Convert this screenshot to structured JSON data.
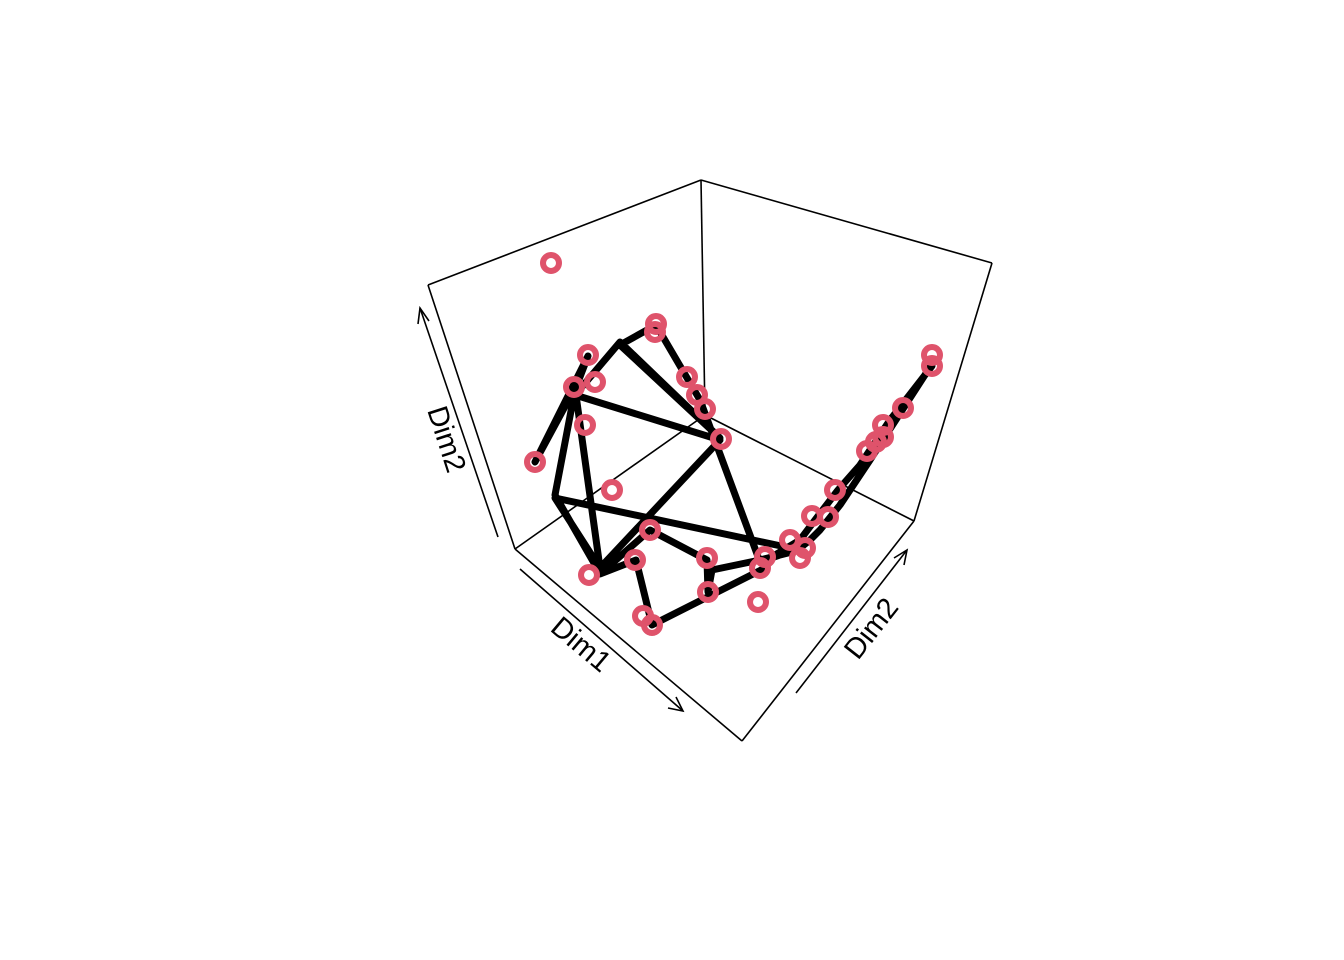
{
  "chart_data": {
    "type": "scatter",
    "subtype": "3d-scatter-with-trajectory",
    "title": "",
    "axes": {
      "x_label": "Dim1",
      "y_label": "Dim2",
      "z_label": "Dim2"
    },
    "point_color": "#DF536B",
    "line_color": "#000000",
    "grid": false,
    "box": "open-3d",
    "points": [
      {
        "x": 551,
        "y": 263
      },
      {
        "x": 656,
        "y": 324
      },
      {
        "x": 655,
        "y": 332
      },
      {
        "x": 588,
        "y": 355
      },
      {
        "x": 574,
        "y": 387
      },
      {
        "x": 595,
        "y": 382
      },
      {
        "x": 687,
        "y": 377
      },
      {
        "x": 697,
        "y": 395
      },
      {
        "x": 705,
        "y": 409
      },
      {
        "x": 585,
        "y": 425
      },
      {
        "x": 721,
        "y": 439
      },
      {
        "x": 535,
        "y": 462
      },
      {
        "x": 612,
        "y": 490
      },
      {
        "x": 650,
        "y": 530
      },
      {
        "x": 635,
        "y": 560
      },
      {
        "x": 707,
        "y": 558
      },
      {
        "x": 589,
        "y": 575
      },
      {
        "x": 708,
        "y": 592
      },
      {
        "x": 643,
        "y": 616
      },
      {
        "x": 652,
        "y": 625
      },
      {
        "x": 758,
        "y": 602
      },
      {
        "x": 760,
        "y": 568
      },
      {
        "x": 765,
        "y": 557
      },
      {
        "x": 790,
        "y": 540
      },
      {
        "x": 805,
        "y": 548
      },
      {
        "x": 800,
        "y": 558
      },
      {
        "x": 812,
        "y": 516
      },
      {
        "x": 828,
        "y": 517
      },
      {
        "x": 835,
        "y": 490
      },
      {
        "x": 867,
        "y": 451
      },
      {
        "x": 876,
        "y": 442
      },
      {
        "x": 883,
        "y": 425
      },
      {
        "x": 883,
        "y": 437
      },
      {
        "x": 903,
        "y": 408
      },
      {
        "x": 932,
        "y": 355
      },
      {
        "x": 932,
        "y": 366
      }
    ],
    "trajectory": [
      [
        932,
        366
      ],
      [
        890,
        420
      ],
      [
        860,
        465
      ],
      [
        838,
        490
      ],
      [
        815,
        520
      ],
      [
        800,
        540
      ],
      [
        775,
        555
      ],
      [
        765,
        568
      ],
      [
        652,
        625
      ],
      [
        636,
        560
      ],
      [
        600,
        574
      ],
      [
        650,
        530
      ],
      [
        707,
        560
      ],
      [
        708,
        592
      ],
      [
        712,
        570
      ],
      [
        760,
        560
      ],
      [
        800,
        550
      ],
      [
        555,
        498
      ],
      [
        600,
        568
      ],
      [
        575,
        388
      ],
      [
        535,
        462
      ],
      [
        588,
        356
      ],
      [
        575,
        390
      ],
      [
        555,
        495
      ],
      [
        598,
        570
      ],
      [
        720,
        440
      ],
      [
        575,
        395
      ],
      [
        620,
        342
      ],
      [
        720,
        438
      ],
      [
        620,
        345
      ],
      [
        656,
        325
      ],
      [
        700,
        400
      ],
      [
        760,
        562
      ],
      [
        800,
        548
      ],
      [
        810,
        540
      ],
      [
        820,
        530
      ],
      [
        840,
        505
      ],
      [
        870,
        460
      ],
      [
        932,
        364
      ]
    ]
  }
}
